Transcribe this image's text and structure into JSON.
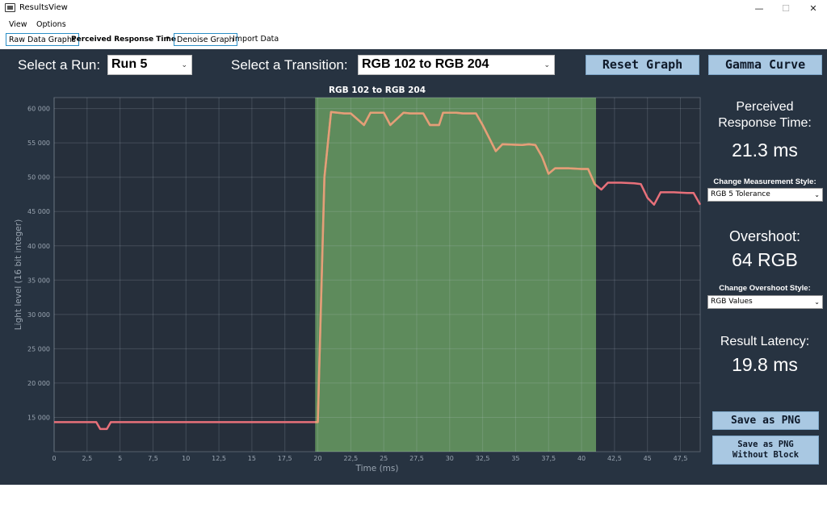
{
  "window": {
    "title": "ResultsView",
    "minimize": "—",
    "maximize": "☐",
    "close": "✕",
    "icon": "monitor-icon"
  },
  "menu": [
    "View",
    "Options"
  ],
  "toolbar": {
    "raw_data_graphs": "Raw Data Graphs",
    "perceived_response_time": "Perceived Response Time",
    "dropdown_arrow": "▾",
    "denoise_graph": "Denoise Graph",
    "import_data": "Import Data"
  },
  "controls": {
    "select_run_label": "Select a Run:",
    "run_value": "Run 5",
    "select_transition_label": "Select a Transition:",
    "transition_value": "RGB 102 to RGB 204",
    "reset_graph": "Reset Graph",
    "gamma_curve": "Gamma Curve",
    "dropdown_arrow": "⌄"
  },
  "sidebar": {
    "perceived_title_line1": "Perceived",
    "perceived_title_line2": "Response Time:",
    "perceived_value": "21.3 ms",
    "measurement_style_label": "Change Measurement Style:",
    "measurement_style_value": "RGB 5 Tolerance",
    "overshoot_title": "Overshoot:",
    "overshoot_value": "64 RGB",
    "overshoot_style_label": "Change Overshoot Style:",
    "overshoot_style_value": "RGB Values",
    "latency_title": "Result Latency:",
    "latency_value": "19.8 ms",
    "save_png": "Save as PNG",
    "save_png_no_block_line1": "Save as PNG",
    "save_png_no_block_line2": "Without Block",
    "dropdown_arrow": "⌄"
  },
  "colors": {
    "background": "#273341",
    "line": "#e8707a",
    "line_in_block": "#e3a077",
    "highlight_block": "#5e8b5c",
    "button": "#a9c8e2"
  },
  "chart_data": {
    "type": "line",
    "title": "RGB 102 to RGB 204",
    "xlabel": "Time (ms)",
    "ylabel": "Light level (16 bit integer)",
    "xlim": [
      0,
      49
    ],
    "ylim": [
      10000,
      61600
    ],
    "x_ticks": [
      0,
      2.5,
      5,
      7.5,
      10,
      12.5,
      15,
      17.5,
      20,
      22.5,
      25,
      27.5,
      30,
      32.5,
      35,
      37.5,
      40,
      42.5,
      45,
      47.5
    ],
    "x_tick_labels": [
      "0",
      "2,5",
      "5",
      "7,5",
      "10",
      "12,5",
      "15",
      "17,5",
      "20",
      "22,5",
      "25",
      "27,5",
      "30",
      "32,5",
      "35",
      "37,5",
      "40",
      "42,5",
      "45",
      "47,5"
    ],
    "y_ticks": [
      15000,
      20000,
      25000,
      30000,
      35000,
      40000,
      45000,
      50000,
      55000,
      60000
    ],
    "y_tick_labels": [
      "15 000",
      "20 000",
      "25 000",
      "30 000",
      "35 000",
      "40 000",
      "45 000",
      "50 000",
      "55 000",
      "60 000"
    ],
    "grid": true,
    "highlight_region": [
      19.8,
      41.1
    ],
    "series": [
      {
        "x": [
          0,
          3.2,
          3.5,
          4.0,
          4.3,
          20.0,
          20.5,
          21.0,
          22.0,
          22.5,
          23.5,
          24.0,
          25.0,
          25.5,
          26.5,
          27.0,
          28.0,
          28.5,
          29.2,
          29.5,
          30.5,
          31.0,
          32.0,
          32.5,
          33.0,
          33.5,
          34.0,
          35.5,
          36.0,
          36.5,
          37.0,
          37.5,
          38.0,
          39.0,
          40.0,
          40.5,
          41.0,
          41.5,
          42.0,
          43.0,
          44.0,
          44.5,
          45.0,
          45.5,
          46.0,
          47.0,
          48.0,
          48.5,
          49.0
        ],
        "y": [
          14300,
          14300,
          13300,
          13300,
          14300,
          14300,
          50000,
          59500,
          59300,
          59300,
          57600,
          59400,
          59400,
          57600,
          59400,
          59300,
          59300,
          57600,
          57600,
          59400,
          59400,
          59300,
          59300,
          57600,
          55700,
          53800,
          54800,
          54700,
          54800,
          54700,
          53000,
          50500,
          51300,
          51300,
          51200,
          51200,
          49000,
          48200,
          49200,
          49200,
          49100,
          49000,
          47000,
          46000,
          47800,
          47800,
          47700,
          47700,
          46000
        ]
      }
    ]
  }
}
